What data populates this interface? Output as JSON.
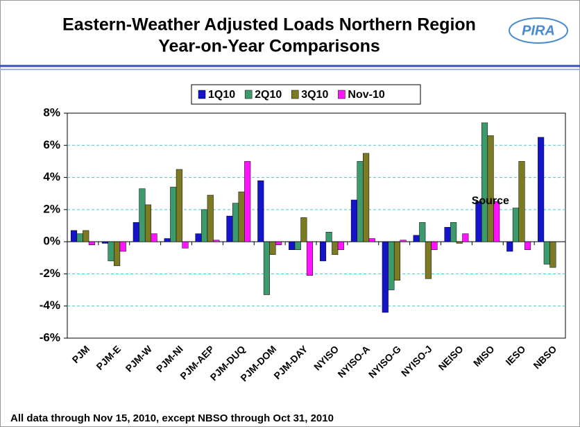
{
  "chart_data": {
    "type": "bar",
    "title": "Eastern-Weather Adjusted Loads Northern Region",
    "subtitle": "Year-on-Year Comparisons",
    "logo": "PIRA",
    "annotation": "Source",
    "footnote": "All data through Nov 15, 2010, except NBSO through Oct 31, 2010",
    "categories": [
      "PJM",
      "PJM-E",
      "PJM-W",
      "PJM-NI",
      "PJM-AEP",
      "PJM-DUQ",
      "PJM-DOM",
      "PJM-DAY",
      "NYISO",
      "NYISO-A",
      "NYISO-G",
      "NYISO-J",
      "NEISO",
      "MISO",
      "IESO",
      "NBSO"
    ],
    "series": [
      {
        "name": "1Q10",
        "color": "#1414c8",
        "values": [
          0.7,
          -0.1,
          1.2,
          0.2,
          0.5,
          1.6,
          3.8,
          -0.5,
          -1.2,
          2.6,
          -4.4,
          0.4,
          0.9,
          2.5,
          -0.6,
          6.5
        ]
      },
      {
        "name": "2Q10",
        "color": "#3c9a6c",
        "values": [
          0.5,
          -1.2,
          3.3,
          3.4,
          2.0,
          2.4,
          -3.3,
          -0.5,
          0.6,
          5.0,
          -3.0,
          1.2,
          1.2,
          7.4,
          2.1,
          -1.4
        ]
      },
      {
        "name": "3Q10",
        "color": "#7c7a22",
        "values": [
          0.7,
          -1.5,
          2.3,
          4.5,
          2.9,
          3.1,
          -0.8,
          1.5,
          -0.8,
          5.5,
          -2.4,
          -2.3,
          -0.1,
          6.6,
          5.0,
          -1.6
        ]
      },
      {
        "name": "Nov-10",
        "color": "#ff14ff",
        "values": [
          -0.2,
          -0.6,
          0.5,
          -0.4,
          0.1,
          5.0,
          -0.2,
          -2.1,
          -0.5,
          0.2,
          0.1,
          -0.5,
          0.5,
          2.5,
          -0.5,
          null
        ]
      }
    ],
    "ylim": [
      -6,
      8
    ],
    "yticks": [
      {
        "value": -6,
        "label": "-6%"
      },
      {
        "value": -4,
        "label": "-4%"
      },
      {
        "value": -2,
        "label": "-2%"
      },
      {
        "value": 0,
        "label": "0%"
      },
      {
        "value": 2,
        "label": "2%"
      },
      {
        "value": 4,
        "label": "4%"
      },
      {
        "value": 6,
        "label": "6%"
      },
      {
        "value": 8,
        "label": "8%"
      }
    ],
    "grid": true
  }
}
